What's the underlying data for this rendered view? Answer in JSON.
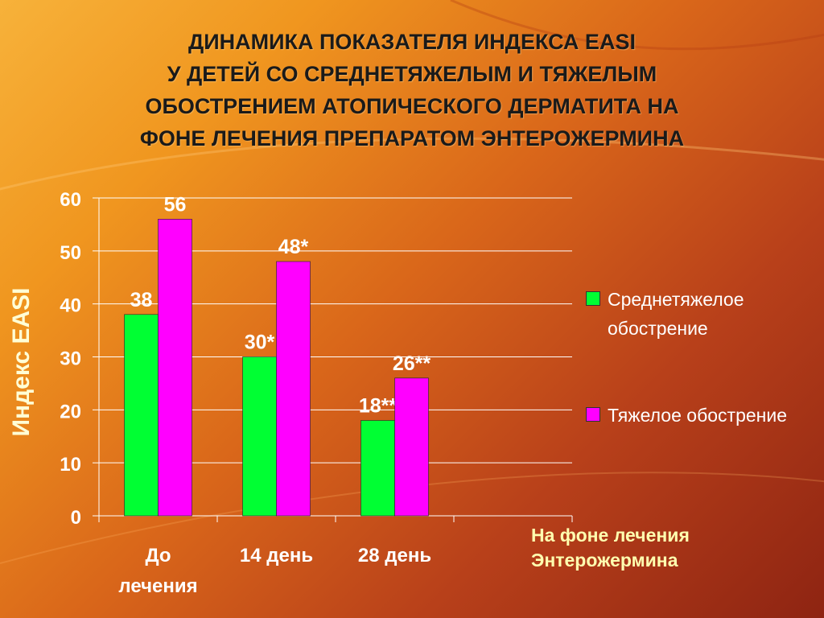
{
  "title_lines": [
    "ДИНАМИКА ПОКАЗАТЕЛЯ ИНДЕКСА EASI",
    "У ДЕТЕЙ СО СРЕДНЕТЯЖЕЛЫМ И ТЯЖЕЛЫМ",
    "ОБОСТРЕНИЕМ АТОПИЧЕСКОГО ДЕРМАТИТА НА",
    "ФОНЕ ЛЕЧЕНИЯ ПРЕПАРАТОМ ЭНТЕРОЖЕРМИНА"
  ],
  "note_lines": [
    "На фоне лечения",
    "Энтерожермина"
  ],
  "colors": {
    "moderate": "#00ff33",
    "severe": "#ff00ff",
    "axis_text": "#ffffff",
    "ylabel": "#ffffd6",
    "note": "#ffffb0"
  },
  "chart_data": {
    "type": "bar",
    "categories": [
      [
        "До",
        "лечения"
      ],
      [
        "14 день"
      ],
      [
        "28 день"
      ],
      [
        ""
      ]
    ],
    "series": [
      {
        "name": "Среднетяжелое обострение",
        "values": [
          38,
          30,
          18,
          null
        ],
        "labels": [
          "38",
          "30*",
          "18**",
          ""
        ]
      },
      {
        "name": "Тяжелое обострение",
        "values": [
          56,
          48,
          26,
          null
        ],
        "labels": [
          "56",
          "48*",
          "26**",
          ""
        ]
      }
    ],
    "ylabel": "Индекс EASI",
    "ylim": [
      0,
      60
    ],
    "yticks": [
      0,
      10,
      20,
      30,
      40,
      50,
      60
    ],
    "grid": true,
    "legend_position": "right"
  }
}
